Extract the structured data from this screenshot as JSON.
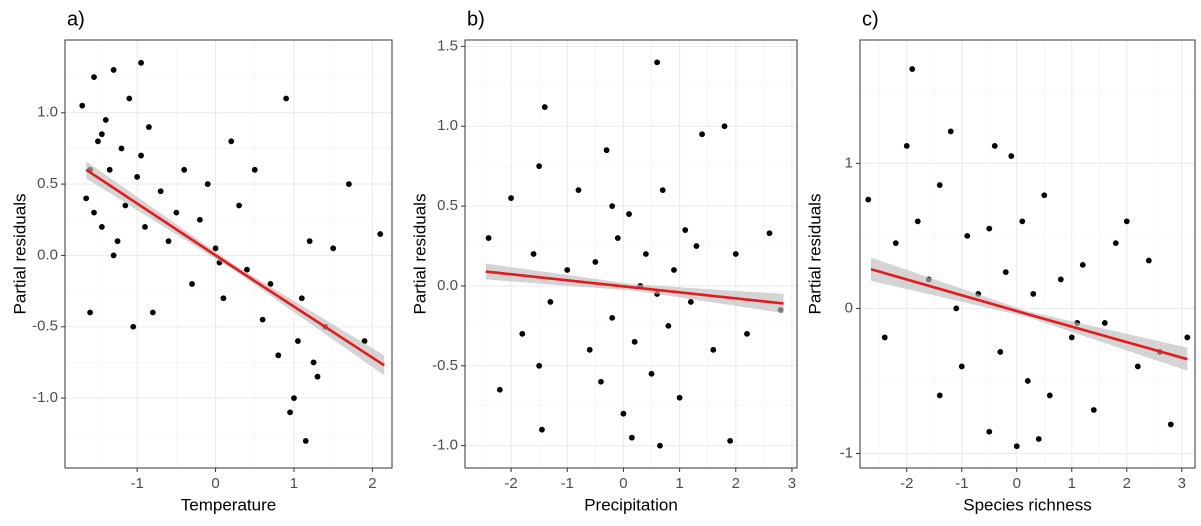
{
  "chart_data": [
    {
      "type": "scatter",
      "title": "a)",
      "x_label": "Temperature",
      "y_label": "Partial residuals",
      "xlim": [
        -1.92,
        2.25
      ],
      "ylim": [
        -1.49,
        1.51
      ],
      "xticks": [
        -1,
        0,
        1,
        2
      ],
      "yticks": [
        {
          "value": -1.0,
          "label": "-1.0"
        },
        -0.5,
        {
          "value": 0.0,
          "label": "0.0"
        },
        0.5,
        {
          "value": 1.0,
          "label": "1.0"
        }
      ],
      "grid": true,
      "color": "#000000",
      "x": [
        -1.7,
        -1.65,
        -1.6,
        -1.55,
        -1.5,
        -1.45,
        -1.4,
        -1.35,
        -1.3,
        -1.25,
        -1.2,
        -1.15,
        -1.1,
        -1.05,
        -1.0,
        -0.95,
        -0.9,
        -0.85,
        -0.8,
        -0.7,
        -0.6,
        -0.5,
        -0.4,
        -0.3,
        -0.2,
        -0.1,
        0.0,
        0.1,
        0.2,
        0.3,
        0.4,
        0.5,
        0.6,
        0.7,
        0.8,
        0.9,
        1.0,
        1.05,
        1.1,
        1.15,
        1.2,
        1.3,
        1.4,
        1.5,
        1.7,
        1.9,
        2.1,
        -1.6,
        -1.3,
        -0.95,
        0.05,
        0.95,
        1.25,
        -1.55,
        -1.45
      ],
      "y": [
        1.05,
        0.4,
        -0.4,
        1.25,
        0.8,
        0.2,
        0.95,
        0.6,
        1.3,
        0.1,
        0.75,
        0.35,
        1.1,
        -0.5,
        0.55,
        1.35,
        0.2,
        0.9,
        -0.4,
        0.45,
        0.1,
        0.3,
        0.6,
        -0.2,
        0.25,
        0.5,
        0.05,
        -0.3,
        0.8,
        0.35,
        -0.1,
        0.6,
        -0.45,
        -0.2,
        -0.7,
        1.1,
        -1.0,
        -0.6,
        -0.3,
        -1.3,
        0.1,
        -0.85,
        -0.5,
        0.05,
        0.5,
        -0.6,
        0.15,
        0.6,
        0.0,
        0.7,
        -0.05,
        -1.1,
        -0.75,
        0.3,
        0.85
      ],
      "fit": {
        "x": [
          -1.65,
          0.25,
          2.15
        ],
        "y": [
          0.6,
          -0.09,
          -0.77
        ],
        "lower": [
          0.54,
          -0.11,
          -0.84
        ],
        "upper": [
          0.66,
          -0.07,
          -0.7
        ],
        "color": "#e41a1c",
        "band_color": "#bdbdbd"
      }
    },
    {
      "type": "scatter",
      "title": "b)",
      "x_label": "Precipitation",
      "y_label": "Partial residuals",
      "xlim": [
        -2.82,
        3.09
      ],
      "ylim": [
        -1.14,
        1.54
      ],
      "xticks": [
        -2,
        -1,
        0,
        1,
        2,
        3
      ],
      "yticks": [
        {
          "value": -1.0,
          "label": "-1.0"
        },
        -0.5,
        {
          "value": 0.0,
          "label": "0.0"
        },
        0.5,
        {
          "value": 1.0,
          "label": "1.0"
        },
        1.5
      ],
      "grid": true,
      "color": "#000000",
      "x": [
        -2.4,
        -2.2,
        -2.0,
        -1.8,
        -1.6,
        -1.5,
        -1.45,
        -1.4,
        -1.3,
        -1.0,
        -0.8,
        -0.6,
        -0.5,
        -0.4,
        -0.3,
        -0.2,
        -0.1,
        0.0,
        0.1,
        0.2,
        0.3,
        0.4,
        0.5,
        0.6,
        0.65,
        0.7,
        0.8,
        0.9,
        1.0,
        1.1,
        1.2,
        1.4,
        1.6,
        1.8,
        1.9,
        2.0,
        2.2,
        2.6,
        2.8,
        -1.5,
        0.15,
        -0.2,
        0.6,
        1.3
      ],
      "y": [
        0.3,
        -0.65,
        0.55,
        -0.3,
        0.2,
        0.75,
        -0.9,
        1.12,
        -0.1,
        0.1,
        0.6,
        -0.4,
        0.15,
        -0.6,
        0.85,
        -0.2,
        0.3,
        -0.8,
        0.45,
        -0.35,
        0.0,
        0.2,
        -0.55,
        1.4,
        -1.0,
        0.6,
        -0.25,
        0.1,
        -0.7,
        0.35,
        -0.1,
        0.95,
        -0.4,
        1.0,
        -0.97,
        0.2,
        -0.3,
        0.33,
        -0.15,
        -0.5,
        -0.95,
        0.5,
        -0.05,
        0.25
      ],
      "fit": {
        "x": [
          -2.45,
          0.2,
          2.85
        ],
        "y": [
          0.09,
          -0.01,
          -0.11
        ],
        "lower": [
          0.04,
          -0.03,
          -0.17
        ],
        "upper": [
          0.14,
          0.01,
          -0.05
        ],
        "color": "#e41a1c",
        "band_color": "#bdbdbd"
      }
    },
    {
      "type": "scatter",
      "title": "c)",
      "x_label": "Species richness",
      "y_label": "Partial residuals",
      "xlim": [
        -2.85,
        3.24
      ],
      "ylim": [
        -1.1,
        1.85
      ],
      "xticks": [
        -2,
        -1,
        0,
        1,
        2,
        3
      ],
      "yticks": [
        -1,
        0,
        1
      ],
      "grid": true,
      "color": "#000000",
      "x": [
        -2.7,
        -2.4,
        -2.2,
        -2.0,
        -1.9,
        -1.8,
        -1.6,
        -1.4,
        -1.2,
        -1.0,
        -0.9,
        -0.7,
        -0.5,
        -0.4,
        -0.3,
        -0.2,
        -0.1,
        0.0,
        0.1,
        0.2,
        0.3,
        0.5,
        0.6,
        0.8,
        1.0,
        1.2,
        1.4,
        1.6,
        1.8,
        2.0,
        2.2,
        2.4,
        2.6,
        2.8,
        3.1,
        -1.4,
        -0.5,
        0.4,
        1.1,
        -1.1
      ],
      "y": [
        0.75,
        -0.2,
        0.45,
        1.12,
        1.65,
        0.6,
        0.2,
        0.85,
        1.22,
        -0.4,
        0.5,
        0.1,
        -0.85,
        1.12,
        -0.3,
        0.25,
        1.05,
        -0.95,
        0.6,
        -0.5,
        0.1,
        0.78,
        -0.6,
        0.2,
        -0.2,
        0.3,
        -0.7,
        -0.1,
        0.45,
        0.6,
        -0.4,
        0.33,
        -0.3,
        -0.8,
        -0.2,
        -0.6,
        0.55,
        -0.9,
        -0.1,
        0.0
      ],
      "fit": {
        "x": [
          -2.65,
          0.2,
          3.1
        ],
        "y": [
          0.27,
          -0.04,
          -0.35
        ],
        "lower": [
          0.19,
          -0.06,
          -0.43
        ],
        "upper": [
          0.35,
          -0.02,
          -0.27
        ],
        "color": "#e41a1c",
        "band_color": "#bdbdbd"
      }
    }
  ]
}
